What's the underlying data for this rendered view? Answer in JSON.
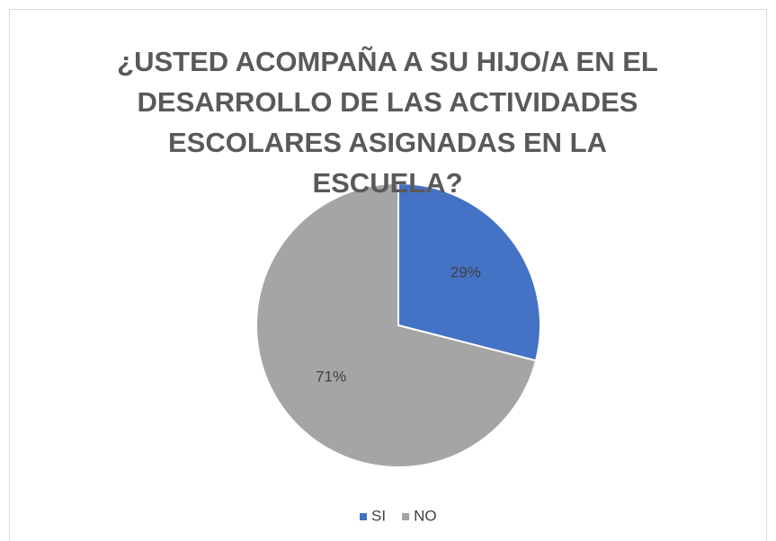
{
  "chart_data": {
    "type": "pie",
    "title": "¿USTED ACOMPAÑA A SU HIJO/A EN EL DESARROLLO DE LAS ACTIVIDADES ESCOLARES ASIGNADAS EN LA ESCUELA?",
    "categories": [
      "SI",
      "NO"
    ],
    "values": [
      29,
      71
    ],
    "value_labels": [
      "29%",
      "71%"
    ],
    "colors": [
      "#4472c4",
      "#a5a5a5"
    ],
    "legend": "bottom"
  }
}
